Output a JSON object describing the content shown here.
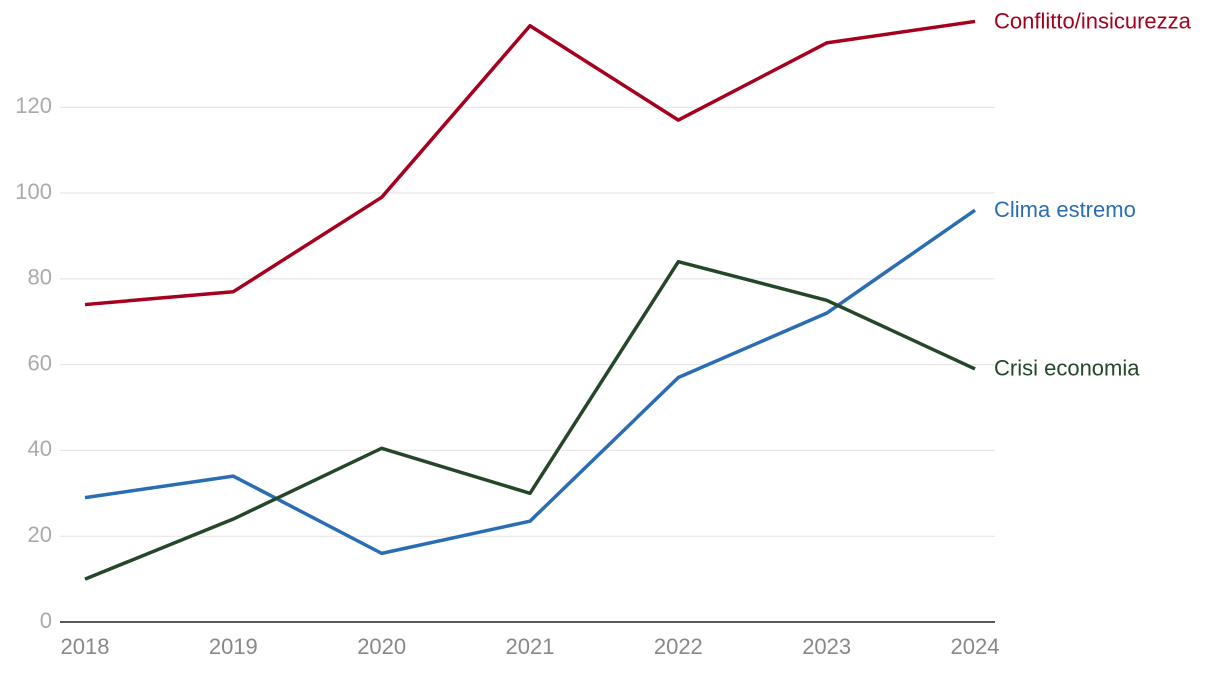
{
  "chart_data": {
    "type": "line",
    "categories": [
      "2018",
      "2019",
      "2020",
      "2021",
      "2022",
      "2023",
      "2024"
    ],
    "series": [
      {
        "name": "Conflitto/insicurezza",
        "color": "#a5001e",
        "values": [
          74,
          77,
          99,
          139,
          117,
          135,
          140
        ]
      },
      {
        "name": "Clima estremo",
        "color": "#2a6db3",
        "values": [
          29,
          34,
          16,
          23.5,
          57,
          72,
          96
        ]
      },
      {
        "name": "Crisi economia",
        "color": "#24472a",
        "values": [
          10,
          24,
          40.5,
          30,
          84,
          75,
          59
        ]
      }
    ],
    "ylim": [
      0,
      145
    ],
    "yticks": [
      0,
      20,
      40,
      60,
      80,
      100,
      120
    ],
    "grid": true
  }
}
